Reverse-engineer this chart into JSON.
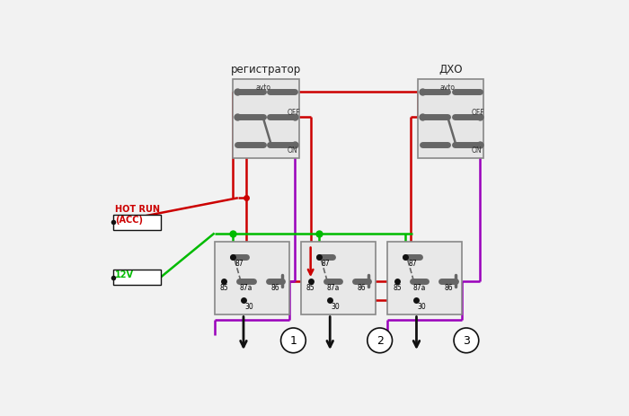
{
  "bg_color": "#f2f2f2",
  "switch1_label": "регистратор",
  "switch2_label": "ДХО",
  "acc_label1": "HOT RUN",
  "acc_label2": "(ACC)",
  "v12_label": "12V",
  "relay_labels": [
    "1",
    "2",
    "3"
  ],
  "avto_label": "avto",
  "off_label": "OFF",
  "on_label": "ON",
  "RED": "#cc0000",
  "GREEN": "#00bb00",
  "PURPLE": "#9900bb",
  "BLACK": "#111111",
  "DKGRAY": "#666666",
  "RELAY_BORDER": "#888888",
  "lw": 1.8,
  "fig_w": 7.0,
  "fig_h": 4.64
}
